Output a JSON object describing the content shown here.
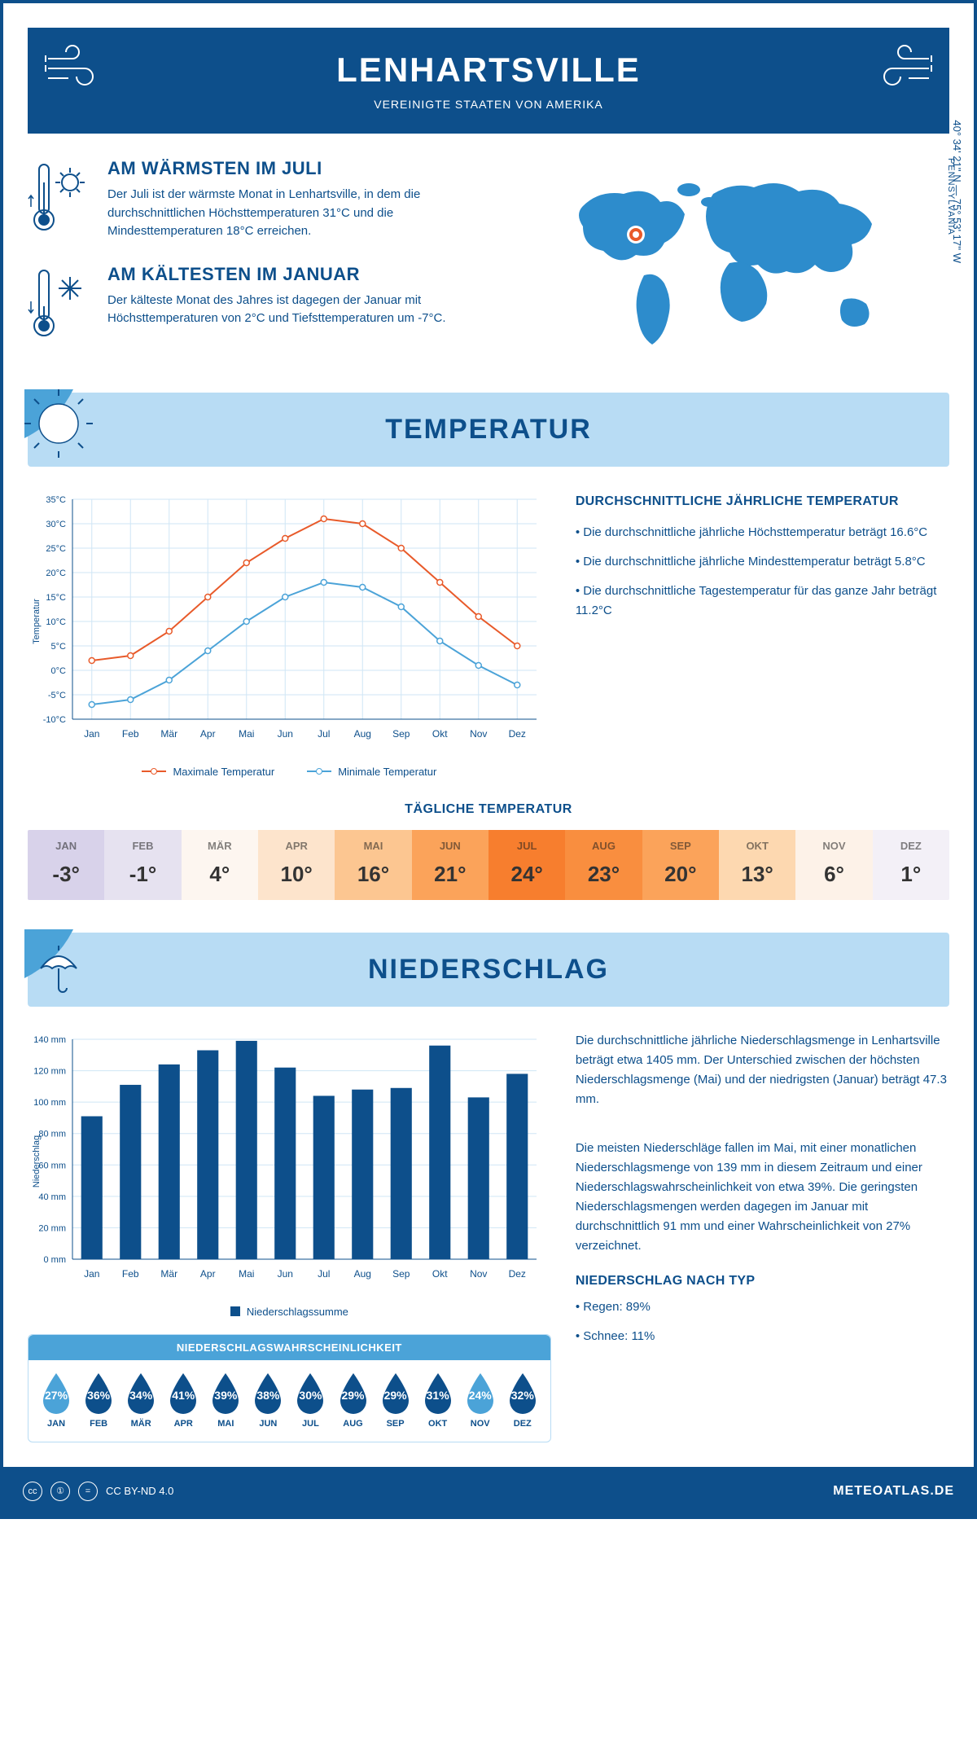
{
  "header": {
    "title": "LENHARTSVILLE",
    "subtitle": "VEREINIGTE STAATEN VON AMERIKA"
  },
  "location": {
    "coords": "40° 34' 21'' N — 75° 53' 17'' W",
    "state": "PENNSYLVANIA"
  },
  "facts": {
    "warm": {
      "title": "AM WÄRMSTEN IM JULI",
      "text": "Der Juli ist der wärmste Monat in Lenhartsville, in dem die durchschnittlichen Höchsttemperaturen 31°C und die Mindesttemperaturen 18°C erreichen."
    },
    "cold": {
      "title": "AM KÄLTESTEN IM JANUAR",
      "text": "Der kälteste Monat des Jahres ist dagegen der Januar mit Höchsttemperaturen von 2°C und Tiefsttemperaturen um -7°C."
    }
  },
  "sections": {
    "temperature": "TEMPERATUR",
    "precipitation": "NIEDERSCHLAG"
  },
  "months": [
    "Jan",
    "Feb",
    "Mär",
    "Apr",
    "Mai",
    "Jun",
    "Jul",
    "Aug",
    "Sep",
    "Okt",
    "Nov",
    "Dez"
  ],
  "months_upper": [
    "JAN",
    "FEB",
    "MÄR",
    "APR",
    "MAI",
    "JUN",
    "JUL",
    "AUG",
    "SEP",
    "OKT",
    "NOV",
    "DEZ"
  ],
  "temp_chart": {
    "ylabel": "Temperatur",
    "ymin": -10,
    "ymax": 35,
    "ystep": 5,
    "max_series": [
      2,
      3,
      8,
      15,
      22,
      27,
      31,
      30,
      25,
      18,
      11,
      5
    ],
    "min_series": [
      -7,
      -6,
      -2,
      4,
      10,
      15,
      18,
      17,
      13,
      6,
      1,
      -3
    ],
    "max_color": "#e85a2a",
    "min_color": "#4ba3d8",
    "grid_color": "#cfe6f5",
    "axis_color": "#0d4f8b",
    "legend_max": "Maximale Temperatur",
    "legend_min": "Minimale Temperatur"
  },
  "temp_side": {
    "heading": "DURCHSCHNITTLICHE JÄHRLICHE TEMPERATUR",
    "b1": "• Die durchschnittliche jährliche Höchsttemperatur beträgt 16.6°C",
    "b2": "• Die durchschnittliche jährliche Mindesttemperatur beträgt 5.8°C",
    "b3": "• Die durchschnittliche Tagestemperatur für das ganze Jahr beträgt 11.2°C"
  },
  "daily_temp": {
    "title": "TÄGLICHE TEMPERATUR",
    "values": [
      "-3°",
      "-1°",
      "4°",
      "10°",
      "16°",
      "21°",
      "24°",
      "23°",
      "20°",
      "13°",
      "6°",
      "1°"
    ],
    "colors": [
      "#d8d2ea",
      "#e6e2f0",
      "#fdf6f0",
      "#fde4cc",
      "#fcc691",
      "#fba35a",
      "#f77e2e",
      "#f98e3f",
      "#fba35a",
      "#fdd8b0",
      "#fdf2e8",
      "#f3f0f7"
    ]
  },
  "precip_chart": {
    "ylabel": "Niederschlag",
    "ymin": 0,
    "ymax": 140,
    "ystep": 20,
    "values": [
      91,
      111,
      124,
      133,
      139,
      122,
      104,
      108,
      109,
      136,
      103,
      118
    ],
    "bar_color": "#0d4f8b",
    "grid_color": "#cfe6f5",
    "legend": "Niederschlagssumme"
  },
  "precip_side": {
    "p1": "Die durchschnittliche jährliche Niederschlagsmenge in Lenhartsville beträgt etwa 1405 mm. Der Unterschied zwischen der höchsten Niederschlagsmenge (Mai) und der niedrigsten (Januar) beträgt 47.3 mm.",
    "p2": "Die meisten Niederschläge fallen im Mai, mit einer monatlichen Niederschlagsmenge von 139 mm in diesem Zeitraum und einer Niederschlagswahrscheinlichkeit von etwa 39%. Die geringsten Niederschlagsmengen werden dagegen im Januar mit durchschnittlich 91 mm und einer Wahrscheinlichkeit von 27% verzeichnet.",
    "type_heading": "NIEDERSCHLAG NACH TYP",
    "rain": "• Regen: 89%",
    "snow": "• Schnee: 11%"
  },
  "probability": {
    "title": "NIEDERSCHLAGSWAHRSCHEINLICHKEIT",
    "values": [
      27,
      36,
      34,
      41,
      39,
      38,
      30,
      29,
      29,
      31,
      24,
      32
    ],
    "color_dark": "#0d4f8b",
    "color_light": "#4ba3d8",
    "light_threshold": 27
  },
  "footer": {
    "license": "CC BY-ND 4.0",
    "site": "METEOATLAS.DE"
  }
}
